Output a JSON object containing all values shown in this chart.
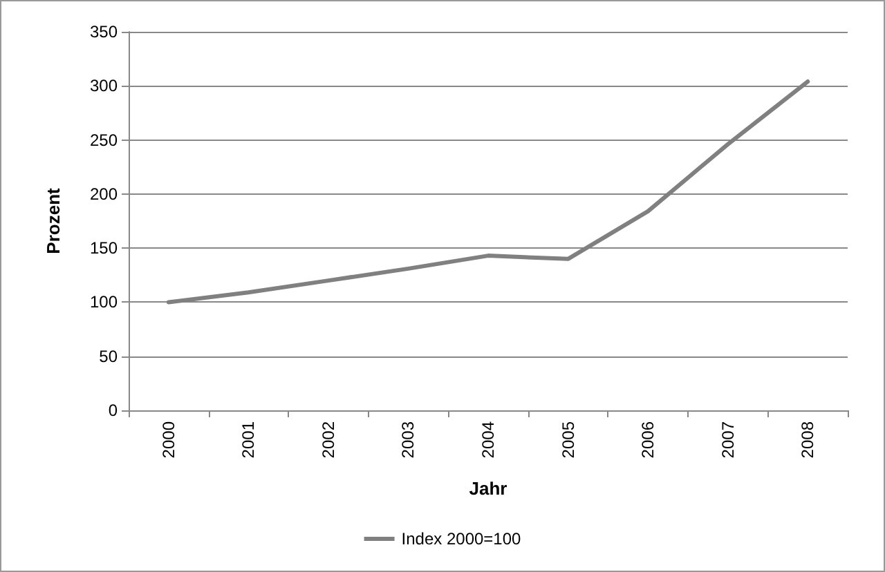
{
  "chart_data": {
    "type": "line",
    "xlabel": "Jahr",
    "ylabel": "Prozent",
    "categories": [
      "2000",
      "2001",
      "2002",
      "2003",
      "2004",
      "2005",
      "2006",
      "2007",
      "2008"
    ],
    "series": [
      {
        "name": "Index 2000=100",
        "color": "#808080",
        "values": [
          100,
          109,
          120,
          131,
          143,
          140,
          184,
          246,
          304
        ]
      }
    ],
    "ylim": [
      0,
      350
    ],
    "yticks": [
      0,
      50,
      100,
      150,
      200,
      250,
      300,
      350
    ],
    "grid": "y",
    "legend": "bottom",
    "marker": "none",
    "line_style": "solid"
  }
}
